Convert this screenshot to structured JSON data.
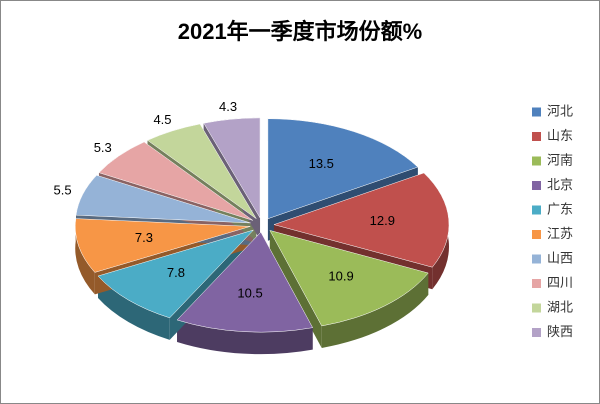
{
  "chart_data": {
    "type": "pie",
    "title": "2021年一季度市场份额%",
    "categories": [
      "河北",
      "山东",
      "河南",
      "北京",
      "广东",
      "江苏",
      "山西",
      "四川",
      "湖北",
      "陕西"
    ],
    "values": [
      13.5,
      12.9,
      10.9,
      10.5,
      7.8,
      7.3,
      5.5,
      5.3,
      4.5,
      4.3
    ],
    "colors": [
      "#4f81bd",
      "#c0504d",
      "#9bbb59",
      "#8064a2",
      "#4bacc6",
      "#f79646",
      "#95b3d7",
      "#e6a5a5",
      "#c3d69b",
      "#b3a2c7"
    ],
    "legend": "right"
  }
}
